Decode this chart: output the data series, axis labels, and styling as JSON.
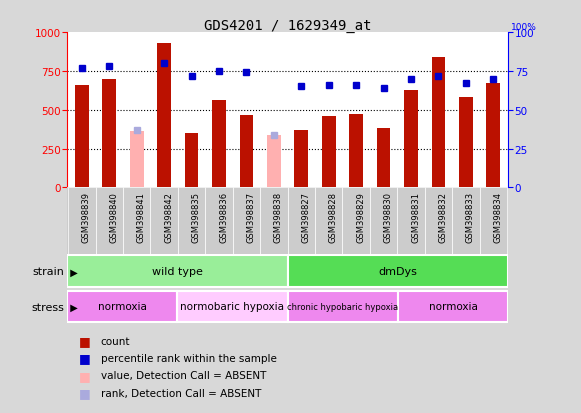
{
  "title": "GDS4201 / 1629349_at",
  "samples": [
    "GSM398839",
    "GSM398840",
    "GSM398841",
    "GSM398842",
    "GSM398835",
    "GSM398836",
    "GSM398837",
    "GSM398838",
    "GSM398827",
    "GSM398828",
    "GSM398829",
    "GSM398830",
    "GSM398831",
    "GSM398832",
    "GSM398833",
    "GSM398834"
  ],
  "bar_values": [
    660,
    700,
    10,
    930,
    350,
    560,
    465,
    20,
    370,
    460,
    470,
    380,
    630,
    840,
    580,
    670
  ],
  "absent_bar_values": [
    null,
    null,
    360,
    null,
    null,
    null,
    null,
    340,
    null,
    null,
    null,
    null,
    null,
    null,
    null,
    null
  ],
  "percentile_values": [
    77,
    78,
    null,
    80,
    72,
    75,
    74,
    null,
    65,
    66,
    66,
    64,
    70,
    72,
    67,
    70
  ],
  "absent_percentile_values": [
    null,
    null,
    37,
    null,
    null,
    null,
    null,
    34,
    null,
    null,
    null,
    null,
    null,
    null,
    null,
    null
  ],
  "bar_color": "#BB1100",
  "absent_bar_color": "#FFB0B0",
  "marker_color": "#0000CC",
  "absent_marker_color": "#AAAADD",
  "fig_bg_color": "#D8D8D8",
  "plot_bg_color": "#FFFFFF",
  "xlabel_bg_color": "#C8C8C8",
  "strain_colors": [
    "#99EE99",
    "#55DD55"
  ],
  "stress_colors": [
    "#EE88EE",
    "#CC55CC",
    "#FFCCFF",
    "#EE88EE"
  ],
  "yticks_left": [
    0,
    250,
    500,
    750,
    1000
  ],
  "yticks_right": [
    0,
    25,
    50,
    75,
    100
  ],
  "grid_values": [
    250,
    500,
    750
  ],
  "strain_segments": [
    {
      "label": "wild type",
      "color_idx": 0,
      "start": 0,
      "end": 7
    },
    {
      "label": "dmDys",
      "color_idx": 1,
      "start": 8,
      "end": 15
    }
  ],
  "stress_segments": [
    {
      "label": "normoxia",
      "color_idx": 0,
      "start": 0,
      "end": 3
    },
    {
      "label": "normobaric hypoxia",
      "color_idx": 2,
      "start": 4,
      "end": 7
    },
    {
      "label": "chronic hypobaric hypoxia",
      "color_idx": 3,
      "start": 8,
      "end": 11
    },
    {
      "label": "normoxia",
      "color_idx": 0,
      "start": 12,
      "end": 15
    }
  ],
  "legend_items": [
    {
      "color": "#BB1100",
      "label": "count"
    },
    {
      "color": "#0000CC",
      "label": "percentile rank within the sample"
    },
    {
      "color": "#FFB0B0",
      "label": "value, Detection Call = ABSENT"
    },
    {
      "color": "#AAAADD",
      "label": "rank, Detection Call = ABSENT"
    }
  ]
}
